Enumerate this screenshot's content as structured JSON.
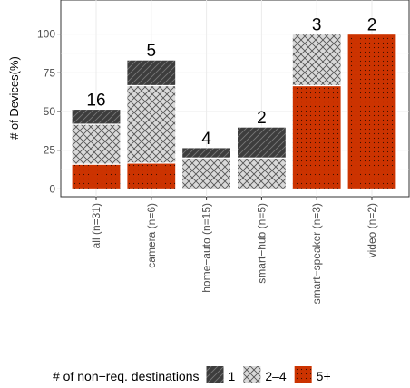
{
  "chart_data": {
    "type": "bar",
    "stacked": true,
    "categories": [
      "all (n=31)",
      "camera (n=6)",
      "home−auto (n=15)",
      "smart−hub (n=5)",
      "smart−speaker (n=3)",
      "video (n=2)"
    ],
    "series": [
      {
        "name": "5+",
        "values": [
          16,
          16.7,
          0,
          0,
          66.7,
          100
        ],
        "color": "#cc3300",
        "pattern": "dots"
      },
      {
        "name": "2–4",
        "values": [
          25.8,
          50,
          20,
          20,
          33.3,
          0
        ],
        "color": "#cccccc",
        "pattern": "crosshatch"
      },
      {
        "name": "1",
        "values": [
          9.7,
          16.6,
          6.7,
          20,
          0,
          0
        ],
        "color": "#444444",
        "pattern": "stripes"
      }
    ],
    "bar_labels": [
      "16",
      "5",
      "4",
      "2",
      "3",
      "2"
    ],
    "xlabel": "",
    "ylabel": "# of Devices(%)",
    "ylim": [
      -5,
      122
    ],
    "yticks": [
      0,
      25,
      50,
      75,
      100
    ],
    "grid": true,
    "legend": {
      "title": "# of non−req. destinations",
      "position": "bottom",
      "entries": [
        "1",
        "2–4",
        "5+"
      ]
    }
  }
}
